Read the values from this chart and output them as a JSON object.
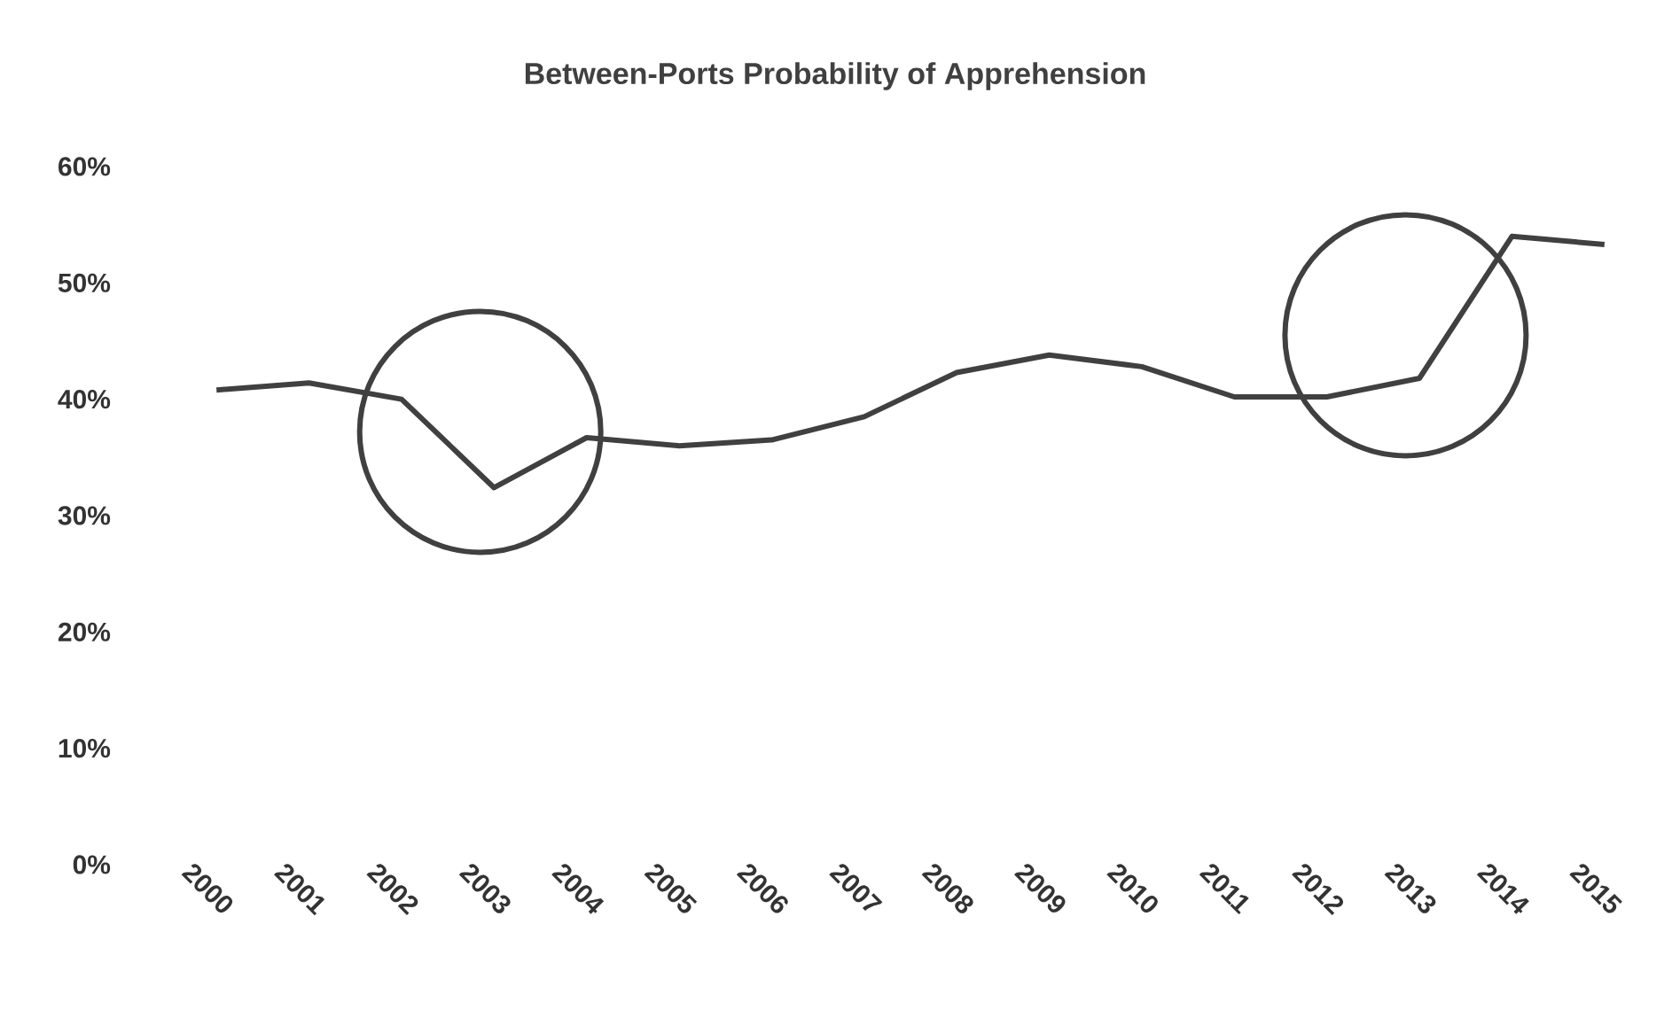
{
  "chart_data": {
    "type": "line",
    "title": "Between-Ports Probability of Apprehension",
    "categories": [
      "2000",
      "2001",
      "2002",
      "2003",
      "2004",
      "2005",
      "2006",
      "2007",
      "2008",
      "2009",
      "2010",
      "2011",
      "2012",
      "2013",
      "2014",
      "2015"
    ],
    "values": [
      40.8,
      41.4,
      40.0,
      32.4,
      36.7,
      36.0,
      36.5,
      38.5,
      42.3,
      43.8,
      42.8,
      40.2,
      40.2,
      41.8,
      54.0,
      53.3
    ],
    "color": "#404040",
    "ylim": [
      0,
      60
    ],
    "yticks": [
      {
        "value": 0,
        "label": "0%"
      },
      {
        "value": 10,
        "label": "10%"
      },
      {
        "value": 20,
        "label": "20%"
      },
      {
        "value": 30,
        "label": "30%"
      },
      {
        "value": 40,
        "label": "40%"
      },
      {
        "value": 50,
        "label": "50%"
      },
      {
        "value": 60,
        "label": "60%"
      }
    ],
    "marker": "none",
    "line_style": "solid"
  }
}
